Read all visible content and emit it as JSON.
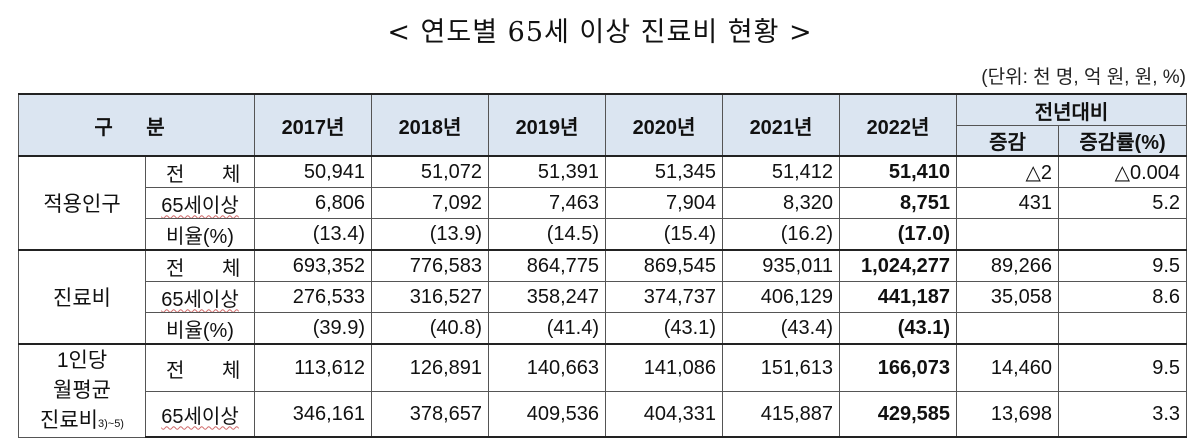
{
  "title": "< 연도별 65세 이상 진료비 현황 >",
  "unit": "(단위: 천 명, 억 원, 원, %)",
  "header": {
    "category": "구 분",
    "years": [
      "2017년",
      "2018년",
      "2019년",
      "2020년",
      "2021년",
      "2022년"
    ],
    "yoy": "전년대비",
    "yoy_change": "증감",
    "yoy_rate": "증감률(%)"
  },
  "groups": [
    {
      "label": "적용인구",
      "rows": [
        {
          "sub": "전 체",
          "values": [
            "50,941",
            "51,072",
            "51,391",
            "51,345",
            "51,412",
            "51,410"
          ],
          "change": "△2",
          "rate": "△0.004"
        },
        {
          "sub": "65세이상",
          "values": [
            "6,806",
            "7,092",
            "7,463",
            "7,904",
            "8,320",
            "8,751"
          ],
          "change": "431",
          "rate": "5.2"
        },
        {
          "sub": "비율(%)",
          "values": [
            "(13.4)",
            "(13.9)",
            "(14.5)",
            "(15.4)",
            "(16.2)",
            "(17.0)"
          ],
          "change": "",
          "rate": ""
        }
      ]
    },
    {
      "label": "진료비",
      "rows": [
        {
          "sub": "전 체",
          "values": [
            "693,352",
            "776,583",
            "864,775",
            "869,545",
            "935,011",
            "1,024,277"
          ],
          "change": "89,266",
          "rate": "9.5"
        },
        {
          "sub": "65세이상",
          "values": [
            "276,533",
            "316,527",
            "358,247",
            "374,737",
            "406,129",
            "441,187"
          ],
          "change": "35,058",
          "rate": "8.6"
        },
        {
          "sub": "비율(%)",
          "values": [
            "(39.9)",
            "(40.8)",
            "(41.4)",
            "(43.1)",
            "(43.4)",
            "(43.1)"
          ],
          "change": "",
          "rate": ""
        }
      ]
    },
    {
      "label_line1": "1인당",
      "label_line2": "월평균",
      "label_line3": "진료비",
      "label_sup": "3)~5)",
      "rows": [
        {
          "sub": "전 체",
          "values": [
            "113,612",
            "126,891",
            "140,663",
            "141,086",
            "151,613",
            "166,073"
          ],
          "change": "14,460",
          "rate": "9.5"
        },
        {
          "sub": "65세이상",
          "values": [
            "346,161",
            "378,657",
            "409,536",
            "404,331",
            "415,887",
            "429,585"
          ],
          "change": "13,698",
          "rate": "3.3"
        }
      ]
    }
  ]
}
